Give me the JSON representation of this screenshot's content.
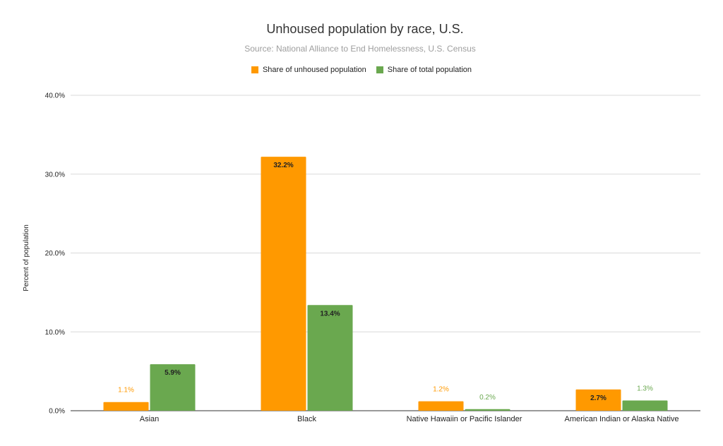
{
  "chart_data": {
    "type": "bar",
    "title": "Unhoused population by race, U.S.",
    "subtitle": "Source: National Alliance to End Homelessness, U.S. Census",
    "xlabel": "",
    "ylabel": "Percent of population",
    "ylim": [
      0,
      40
    ],
    "yticks": [
      "0.0%",
      "10.0%",
      "20.0%",
      "30.0%",
      "40.0%"
    ],
    "grid": true,
    "legend_position": "top",
    "categories": [
      "Asian",
      "Black",
      "Native Hawaiin or Pacific Islander",
      "American Indian or Alaska Native"
    ],
    "series": [
      {
        "name": "Share of unhoused population",
        "color": "#ff9900",
        "values": [
          1.1,
          32.2,
          1.2,
          2.7
        ],
        "labels": [
          "1.1%",
          "32.2%",
          "1.2%",
          "2.7%"
        ]
      },
      {
        "name": "Share of total population",
        "color": "#6aa84f",
        "values": [
          5.9,
          13.4,
          0.2,
          1.3
        ],
        "labels": [
          "5.9%",
          "13.4%",
          "0.2%",
          "1.3%"
        ]
      }
    ]
  }
}
